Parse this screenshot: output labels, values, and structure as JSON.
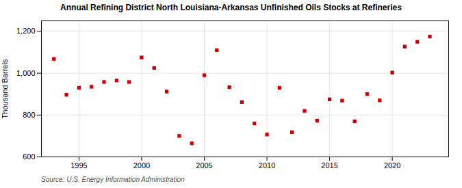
{
  "chart_data": {
    "type": "scatter",
    "title": "Annual Refining District North Louisiana-Arkansas Unfinished Oils Stocks at Refineries",
    "ylabel": "Thousand Barrels",
    "caption": "Source: U.S. Energy Information Administration",
    "x": [
      1993,
      1994,
      1995,
      1996,
      1997,
      1998,
      1999,
      2000,
      2001,
      2002,
      2003,
      2004,
      2005,
      2006,
      2007,
      2008,
      2009,
      2010,
      2011,
      2012,
      2013,
      2014,
      2015,
      2016,
      2017,
      2018,
      2019,
      2020,
      2021,
      2022,
      2023
    ],
    "values": [
      1068,
      897,
      930,
      935,
      958,
      965,
      958,
      1075,
      1025,
      912,
      700,
      665,
      990,
      1110,
      933,
      862,
      760,
      707,
      930,
      718,
      820,
      773,
      875,
      869,
      770,
      900,
      870,
      1003,
      1127,
      1150,
      1175
    ],
    "color": "#cc0000",
    "marker": "square",
    "xlim": [
      1992,
      2024.5
    ],
    "xticks": [
      1995,
      2000,
      2005,
      2010,
      2015,
      2020
    ],
    "ylim": [
      600,
      1250
    ],
    "yticks": [
      600,
      800,
      {
        "value": 1000,
        "label": "1,000"
      },
      {
        "value": 1200,
        "label": "1,200"
      }
    ],
    "grid": true
  }
}
